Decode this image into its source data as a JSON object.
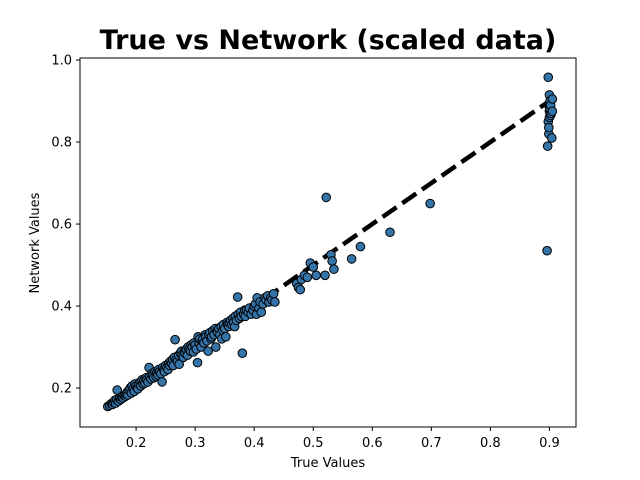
{
  "chart_data": {
    "type": "scatter",
    "title": "True vs Network (scaled data)",
    "xlabel": "True Values",
    "ylabel": "Network Values",
    "xlim": [
      0.105,
      0.945
    ],
    "ylim": [
      0.105,
      1.005
    ],
    "xticks": [
      0.2,
      0.3,
      0.4,
      0.5,
      0.6,
      0.7,
      0.8,
      0.9
    ],
    "xtick_labels": [
      "0.2",
      "0.3",
      "0.4",
      "0.5",
      "0.6",
      "0.7",
      "0.8",
      "0.9"
    ],
    "yticks": [
      0.2,
      0.4,
      0.6,
      0.8,
      1.0
    ],
    "ytick_labels": [
      "0.2",
      "0.4",
      "0.6",
      "0.8",
      "1.0"
    ],
    "grid": false,
    "colors": {
      "marker_fill": "#3474a8",
      "marker_edge": "#000000",
      "reference_line": "#000000"
    },
    "reference_line": {
      "style": "dashed",
      "x": [
        0.15,
        0.9
      ],
      "y": [
        0.15,
        0.9
      ]
    },
    "series": [
      {
        "points": [
          [
            0.152,
            0.155
          ],
          [
            0.155,
            0.158
          ],
          [
            0.158,
            0.162
          ],
          [
            0.16,
            0.16
          ],
          [
            0.162,
            0.165
          ],
          [
            0.164,
            0.17
          ],
          [
            0.165,
            0.163
          ],
          [
            0.167,
            0.172
          ],
          [
            0.168,
            0.195
          ],
          [
            0.17,
            0.168
          ],
          [
            0.172,
            0.175
          ],
          [
            0.174,
            0.172
          ],
          [
            0.175,
            0.178
          ],
          [
            0.177,
            0.18
          ],
          [
            0.178,
            0.176
          ],
          [
            0.18,
            0.182
          ],
          [
            0.182,
            0.18
          ],
          [
            0.183,
            0.185
          ],
          [
            0.185,
            0.19
          ],
          [
            0.186,
            0.183
          ],
          [
            0.188,
            0.195
          ],
          [
            0.19,
            0.2
          ],
          [
            0.192,
            0.188
          ],
          [
            0.193,
            0.205
          ],
          [
            0.195,
            0.198
          ],
          [
            0.197,
            0.192
          ],
          [
            0.198,
            0.21
          ],
          [
            0.2,
            0.205
          ],
          [
            0.202,
            0.2
          ],
          [
            0.203,
            0.198
          ],
          [
            0.205,
            0.21
          ],
          [
            0.207,
            0.215
          ],
          [
            0.208,
            0.205
          ],
          [
            0.21,
            0.22
          ],
          [
            0.212,
            0.21
          ],
          [
            0.213,
            0.218
          ],
          [
            0.215,
            0.212
          ],
          [
            0.217,
            0.225
          ],
          [
            0.218,
            0.22
          ],
          [
            0.22,
            0.215
          ],
          [
            0.222,
            0.25
          ],
          [
            0.223,
            0.228
          ],
          [
            0.225,
            0.222
          ],
          [
            0.227,
            0.235
          ],
          [
            0.228,
            0.23
          ],
          [
            0.23,
            0.225
          ],
          [
            0.232,
            0.24
          ],
          [
            0.234,
            0.228
          ],
          [
            0.235,
            0.238
          ],
          [
            0.237,
            0.232
          ],
          [
            0.238,
            0.245
          ],
          [
            0.24,
            0.24
          ],
          [
            0.242,
            0.235
          ],
          [
            0.244,
            0.215
          ],
          [
            0.245,
            0.25
          ],
          [
            0.247,
            0.245
          ],
          [
            0.248,
            0.24
          ],
          [
            0.25,
            0.255
          ],
          [
            0.252,
            0.25
          ],
          [
            0.254,
            0.245
          ],
          [
            0.255,
            0.26
          ],
          [
            0.257,
            0.255
          ],
          [
            0.258,
            0.265
          ],
          [
            0.26,
            0.26
          ],
          [
            0.262,
            0.27
          ],
          [
            0.263,
            0.255
          ],
          [
            0.265,
            0.275
          ],
          [
            0.266,
            0.318
          ],
          [
            0.268,
            0.27
          ],
          [
            0.27,
            0.265
          ],
          [
            0.272,
            0.28
          ],
          [
            0.273,
            0.258
          ],
          [
            0.275,
            0.285
          ],
          [
            0.277,
            0.29
          ],
          [
            0.278,
            0.28
          ],
          [
            0.28,
            0.275
          ],
          [
            0.282,
            0.29
          ],
          [
            0.283,
            0.285
          ],
          [
            0.285,
            0.295
          ],
          [
            0.287,
            0.28
          ],
          [
            0.288,
            0.3
          ],
          [
            0.29,
            0.295
          ],
          [
            0.292,
            0.29
          ],
          [
            0.293,
            0.305
          ],
          [
            0.295,
            0.3
          ],
          [
            0.297,
            0.288
          ],
          [
            0.298,
            0.31
          ],
          [
            0.3,
            0.305
          ],
          [
            0.302,
            0.295
          ],
          [
            0.304,
            0.262
          ],
          [
            0.305,
            0.325
          ],
          [
            0.307,
            0.31
          ],
          [
            0.308,
            0.32
          ],
          [
            0.31,
            0.3
          ],
          [
            0.312,
            0.315
          ],
          [
            0.313,
            0.32
          ],
          [
            0.315,
            0.31
          ],
          [
            0.317,
            0.33
          ],
          [
            0.318,
            0.325
          ],
          [
            0.32,
            0.315
          ],
          [
            0.322,
            0.29
          ],
          [
            0.323,
            0.33
          ],
          [
            0.325,
            0.335
          ],
          [
            0.327,
            0.32
          ],
          [
            0.328,
            0.325
          ],
          [
            0.33,
            0.34
          ],
          [
            0.332,
            0.33
          ],
          [
            0.334,
            0.345
          ],
          [
            0.335,
            0.3
          ],
          [
            0.337,
            0.34
          ],
          [
            0.338,
            0.335
          ],
          [
            0.34,
            0.345
          ],
          [
            0.342,
            0.33
          ],
          [
            0.344,
            0.35
          ],
          [
            0.345,
            0.32
          ],
          [
            0.347,
            0.34
          ],
          [
            0.348,
            0.355
          ],
          [
            0.35,
            0.345
          ],
          [
            0.352,
            0.325
          ],
          [
            0.354,
            0.36
          ],
          [
            0.355,
            0.355
          ],
          [
            0.357,
            0.35
          ],
          [
            0.358,
            0.36
          ],
          [
            0.36,
            0.365
          ],
          [
            0.362,
            0.355
          ],
          [
            0.364,
            0.37
          ],
          [
            0.365,
            0.36
          ],
          [
            0.367,
            0.35
          ],
          [
            0.368,
            0.375
          ],
          [
            0.37,
            0.365
          ],
          [
            0.372,
            0.422
          ],
          [
            0.373,
            0.38
          ],
          [
            0.375,
            0.37
          ],
          [
            0.377,
            0.385
          ],
          [
            0.378,
            0.375
          ],
          [
            0.38,
            0.285
          ],
          [
            0.382,
            0.38
          ],
          [
            0.384,
            0.39
          ],
          [
            0.385,
            0.375
          ],
          [
            0.387,
            0.39
          ],
          [
            0.39,
            0.385
          ],
          [
            0.392,
            0.395
          ],
          [
            0.395,
            0.38
          ],
          [
            0.398,
            0.39
          ],
          [
            0.4,
            0.4
          ],
          [
            0.402,
            0.405
          ],
          [
            0.404,
            0.38
          ],
          [
            0.405,
            0.42
          ],
          [
            0.408,
            0.395
          ],
          [
            0.41,
            0.41
          ],
          [
            0.412,
            0.385
          ],
          [
            0.415,
            0.405
          ],
          [
            0.418,
            0.42
          ],
          [
            0.42,
            0.415
          ],
          [
            0.423,
            0.425
          ],
          [
            0.425,
            0.41
          ],
          [
            0.428,
            0.42
          ],
          [
            0.43,
            0.415
          ],
          [
            0.433,
            0.43
          ],
          [
            0.435,
            0.41
          ],
          [
            0.472,
            0.455
          ],
          [
            0.475,
            0.445
          ],
          [
            0.478,
            0.44
          ],
          [
            0.48,
            0.465
          ],
          [
            0.485,
            0.475
          ],
          [
            0.49,
            0.47
          ],
          [
            0.495,
            0.505
          ],
          [
            0.5,
            0.495
          ],
          [
            0.505,
            0.475
          ],
          [
            0.52,
            0.475
          ],
          [
            0.522,
            0.665
          ],
          [
            0.53,
            0.525
          ],
          [
            0.532,
            0.51
          ],
          [
            0.535,
            0.49
          ],
          [
            0.565,
            0.515
          ],
          [
            0.58,
            0.545
          ],
          [
            0.63,
            0.58
          ],
          [
            0.698,
            0.65
          ],
          [
            0.896,
            0.535
          ],
          [
            0.897,
            0.79
          ],
          [
            0.898,
            0.958
          ],
          [
            0.898,
            0.85
          ],
          [
            0.899,
            0.82
          ],
          [
            0.899,
            0.835
          ],
          [
            0.9,
            0.915
          ],
          [
            0.9,
            0.86
          ],
          [
            0.9,
            0.875
          ],
          [
            0.9,
            0.885
          ],
          [
            0.9,
            0.895
          ],
          [
            0.901,
            0.9
          ],
          [
            0.901,
            0.88
          ],
          [
            0.902,
            0.865
          ],
          [
            0.902,
            0.89
          ],
          [
            0.903,
            0.87
          ],
          [
            0.904,
            0.81
          ],
          [
            0.905,
            0.905
          ],
          [
            0.905,
            0.875
          ]
        ]
      }
    ]
  }
}
